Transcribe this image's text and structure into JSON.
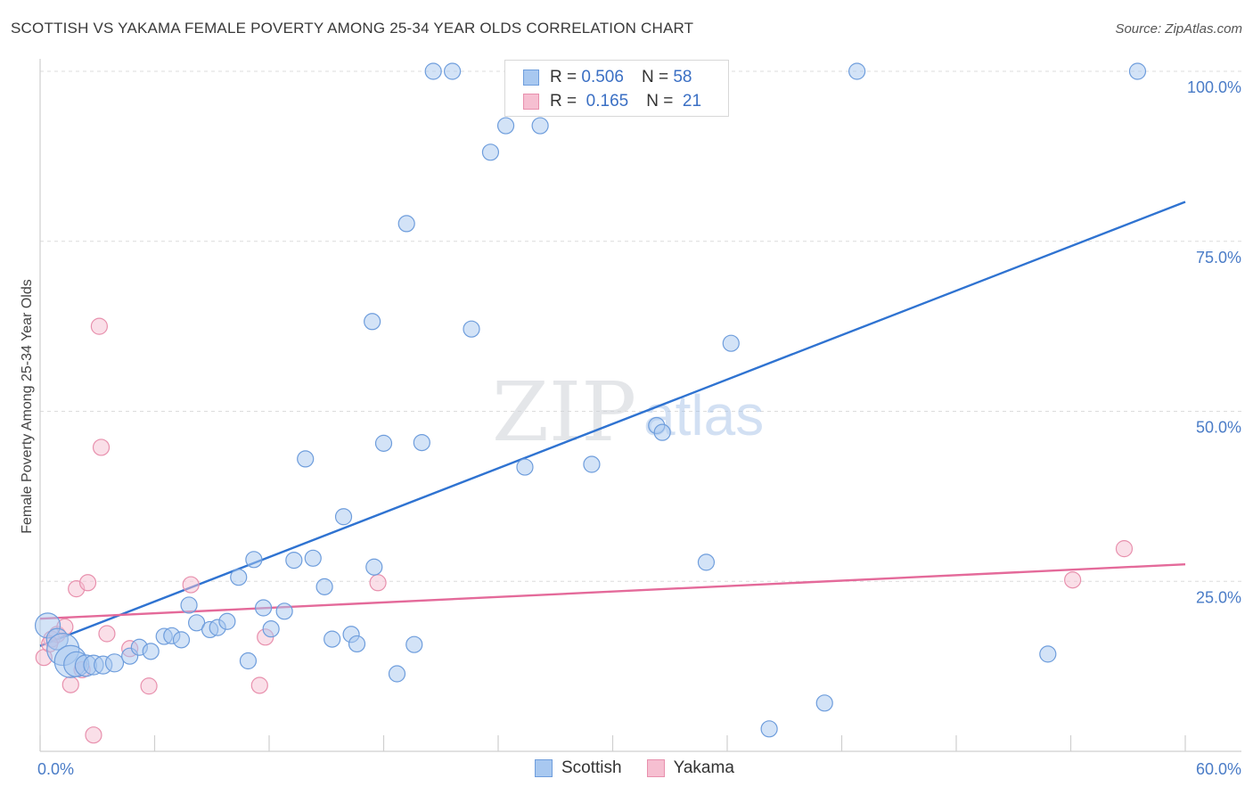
{
  "header": {
    "title": "SCOTTISH VS YAKAMA FEMALE POVERTY AMONG 25-34 YEAR OLDS CORRELATION CHART",
    "source": "Source: ZipAtlas.com"
  },
  "watermark": {
    "zip": "ZIP",
    "atlas": "atlas"
  },
  "legend": {
    "rows": [
      {
        "r_label": "R =",
        "r_value": "0.506",
        "n_label": "N =",
        "n_value": "58",
        "color": "#a8c8f0",
        "border": "#6e9ddc"
      },
      {
        "r_label": "R =",
        "r_value": "0.165",
        "n_label": "N =",
        "n_value": "21",
        "color": "#f6bfd1",
        "border": "#e890ad"
      }
    ]
  },
  "bottom_legend": [
    {
      "label": "Scottish",
      "color": "#a8c8f0",
      "border": "#6e9ddc"
    },
    {
      "label": "Yakama",
      "color": "#f6bfd1",
      "border": "#e890ad"
    }
  ],
  "chart_data": {
    "type": "scatter",
    "title": "SCOTTISH VS YAKAMA FEMALE POVERTY AMONG 25-34 YEAR OLDS CORRELATION CHART",
    "xlabel": "",
    "ylabel": "Female Poverty Among 25-34 Year Olds",
    "xlim": [
      0,
      60
    ],
    "ylim": [
      0,
      100
    ],
    "x_tick_labels": [
      "0.0%",
      "60.0%"
    ],
    "y_tick_labels": [
      "100.0%",
      "75.0%",
      "50.0%",
      "25.0%"
    ],
    "y_ticks": [
      100,
      75,
      50,
      25
    ],
    "grid": true,
    "legend_position": "top-center",
    "series": [
      {
        "name": "Scottish",
        "color": "#6e9ddc",
        "fill": "#a8c8f0",
        "trend": {
          "x": [
            0,
            60
          ],
          "y": [
            15.5,
            80.8
          ],
          "color": "#2f73d1"
        },
        "points": [
          [
            0.4,
            18.5,
            14
          ],
          [
            0.9,
            16.5,
            12
          ],
          [
            1.2,
            15.0,
            18
          ],
          [
            1.6,
            13.2,
            18
          ],
          [
            1.9,
            12.8,
            14
          ],
          [
            2.4,
            12.6,
            12
          ],
          [
            2.8,
            12.7,
            11
          ],
          [
            3.3,
            12.7,
            10
          ],
          [
            3.9,
            13.0,
            10
          ],
          [
            4.7,
            14.0,
            9
          ],
          [
            5.2,
            15.3,
            9
          ],
          [
            5.8,
            14.7,
            9
          ],
          [
            6.5,
            16.9,
            9
          ],
          [
            6.9,
            17.0,
            9
          ],
          [
            7.4,
            16.4,
            9
          ],
          [
            7.8,
            21.5,
            9
          ],
          [
            8.2,
            18.9,
            9
          ],
          [
            8.9,
            17.9,
            9
          ],
          [
            9.3,
            18.2,
            9
          ],
          [
            9.8,
            19.1,
            9
          ],
          [
            10.4,
            25.6,
            9
          ],
          [
            10.9,
            13.3,
            9
          ],
          [
            11.2,
            28.2,
            9
          ],
          [
            11.7,
            21.1,
            9
          ],
          [
            12.1,
            18.0,
            9
          ],
          [
            12.8,
            20.6,
            9
          ],
          [
            13.3,
            28.1,
            9
          ],
          [
            13.9,
            43.0,
            9
          ],
          [
            14.3,
            28.4,
            9
          ],
          [
            14.9,
            24.2,
            9
          ],
          [
            15.3,
            16.5,
            9
          ],
          [
            15.9,
            34.5,
            9
          ],
          [
            16.3,
            17.2,
            9
          ],
          [
            16.6,
            15.8,
            9
          ],
          [
            17.4,
            63.2,
            9
          ],
          [
            17.5,
            27.1,
            9
          ],
          [
            18.0,
            45.3,
            9
          ],
          [
            18.7,
            11.4,
            9
          ],
          [
            19.2,
            77.6,
            9
          ],
          [
            19.6,
            15.7,
            9
          ],
          [
            20.0,
            45.4,
            9
          ],
          [
            20.6,
            100.0,
            9
          ],
          [
            21.6,
            100.0,
            9
          ],
          [
            22.6,
            62.1,
            9
          ],
          [
            23.6,
            88.1,
            9
          ],
          [
            24.4,
            92.0,
            9
          ],
          [
            25.4,
            41.8,
            9
          ],
          [
            26.2,
            92.0,
            9
          ],
          [
            28.9,
            42.2,
            9
          ],
          [
            32.3,
            47.9,
            9
          ],
          [
            32.6,
            46.9,
            9
          ],
          [
            34.9,
            27.8,
            9
          ],
          [
            36.2,
            60.0,
            9
          ],
          [
            38.2,
            3.3,
            9
          ],
          [
            41.1,
            7.1,
            9
          ],
          [
            42.8,
            100.0,
            9
          ],
          [
            52.8,
            14.3,
            9
          ],
          [
            57.5,
            100.0,
            9
          ]
        ]
      },
      {
        "name": "Yakama",
        "color": "#e890ad",
        "fill": "#f6bfd1",
        "trend": {
          "x": [
            0,
            60
          ],
          "y": [
            19.5,
            27.5
          ],
          "color": "#e46a9a"
        },
        "points": [
          [
            0.2,
            13.8,
            9
          ],
          [
            0.6,
            16.5,
            9
          ],
          [
            0.9,
            17.2,
            9
          ],
          [
            1.3,
            18.3,
            9
          ],
          [
            1.6,
            9.8,
            9
          ],
          [
            1.9,
            23.9,
            9
          ],
          [
            2.2,
            12.0,
            9
          ],
          [
            2.5,
            24.8,
            9
          ],
          [
            2.8,
            2.4,
            9
          ],
          [
            3.1,
            62.5,
            9
          ],
          [
            3.2,
            44.7,
            9
          ],
          [
            3.5,
            17.3,
            9
          ],
          [
            4.7,
            15.1,
            9
          ],
          [
            5.7,
            9.6,
            9
          ],
          [
            7.9,
            24.5,
            9
          ],
          [
            11.5,
            9.7,
            9
          ],
          [
            11.8,
            16.8,
            9
          ],
          [
            17.7,
            24.8,
            9
          ],
          [
            54.1,
            25.2,
            9
          ],
          [
            56.8,
            29.8,
            9
          ],
          [
            0.5,
            15.8,
            9
          ]
        ]
      }
    ]
  }
}
